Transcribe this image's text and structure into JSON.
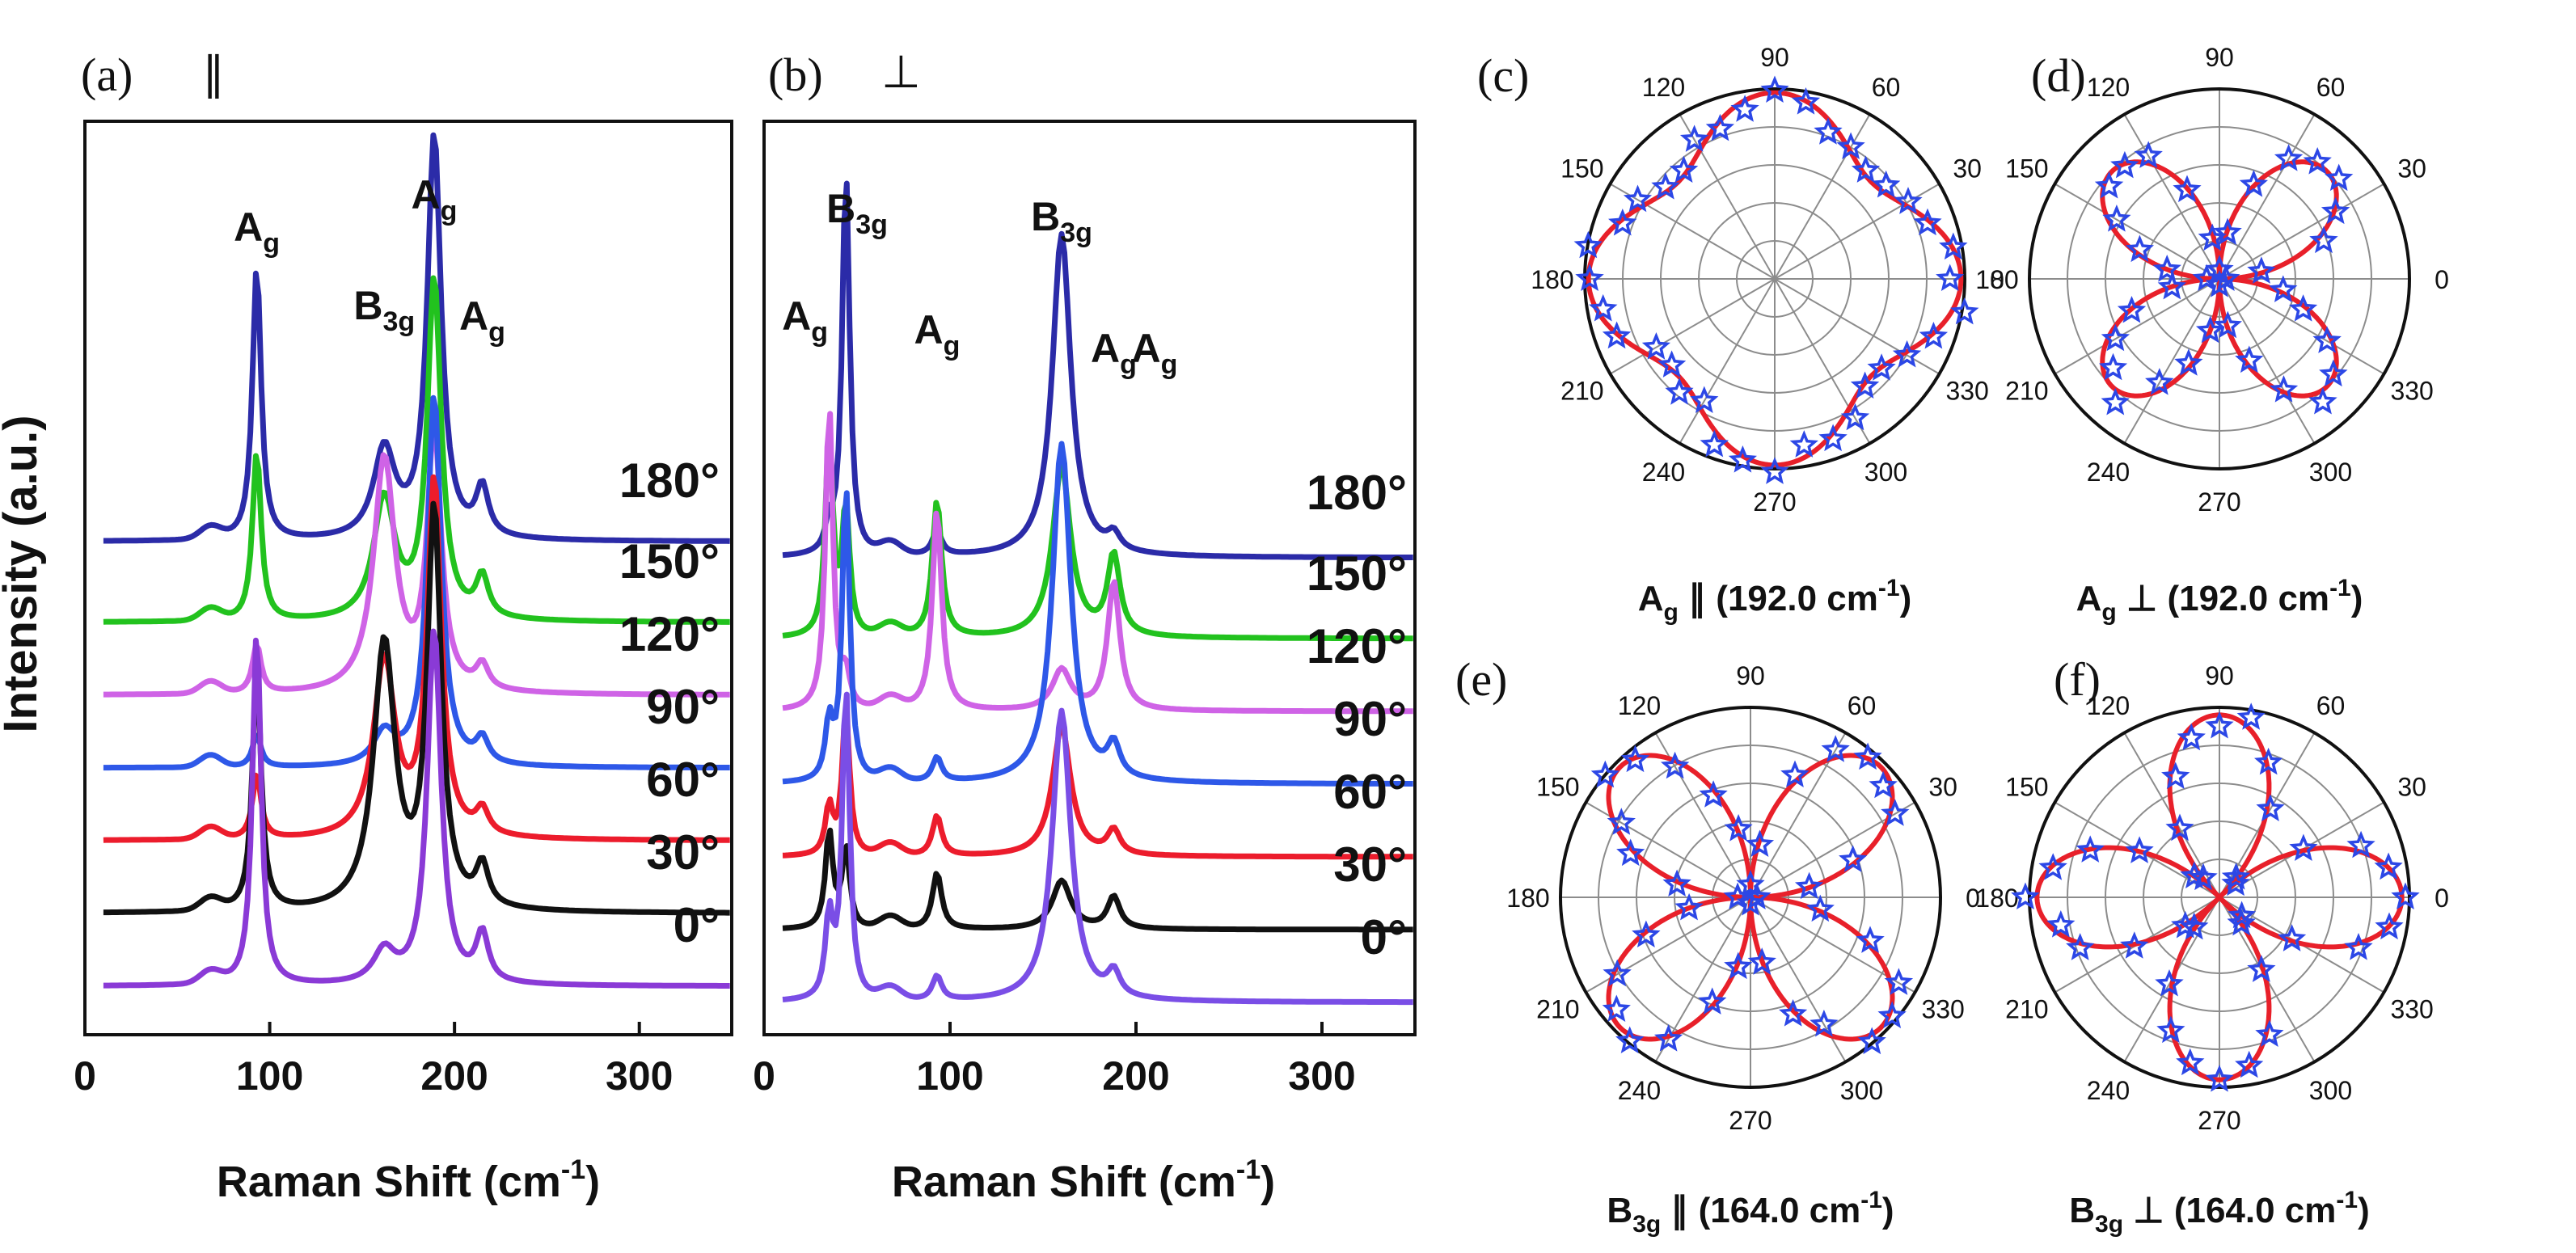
{
  "chart_data": [
    {
      "type": "line",
      "panel": "(a)",
      "polarization": "∥",
      "xlabel": "Raman Shift (cm-1)",
      "xlabel_main": "Raman Shift (cm",
      "xlabel_sup": "-1",
      "xlabel_end": ")",
      "ylabel": "Intensity (a.u.)",
      "xlim": [
        0,
        350
      ],
      "xticks": [
        "0",
        "100",
        "200",
        "300"
      ],
      "xtick_values": [
        0,
        100,
        200,
        300
      ],
      "peaks_cm": [
        93,
        162,
        189,
        215
      ],
      "peak_labels": [
        {
          "main": "A",
          "sub": "g",
          "x_cm": 93
        },
        {
          "main": "B",
          "sub": "3g",
          "x_cm": 162
        },
        {
          "main": "A",
          "sub": "g",
          "x_cm": 189
        },
        {
          "main": "A",
          "sub": "g",
          "x_cm": 215
        }
      ],
      "series": [
        {
          "name": "180°",
          "color": "#2b2ba8",
          "baseline": 0.8,
          "offset": 5.3,
          "peaks": [
            3.4,
            1.1,
            5.0,
            0.6
          ]
        },
        {
          "name": "150°",
          "color": "#22c21e",
          "baseline": 0.8,
          "offset": 4.3,
          "peaks": [
            2.1,
            1.5,
            4.2,
            0.5
          ]
        },
        {
          "name": "120°",
          "color": "#cf63e6",
          "baseline": 0.8,
          "offset": 3.4,
          "peaks": [
            0.6,
            2.9,
            3.2,
            0.3
          ]
        },
        {
          "name": "90°",
          "color": "#2e58e8",
          "baseline": 0.8,
          "offset": 2.5,
          "peaks": [
            0.4,
            0.4,
            4.6,
            0.3
          ]
        },
        {
          "name": "60°",
          "color": "#ec1c2c",
          "baseline": 0.8,
          "offset": 1.6,
          "peaks": [
            0.8,
            2.2,
            4.4,
            0.3
          ]
        },
        {
          "name": "30°",
          "color": "#111111",
          "baseline": 0.8,
          "offset": 0.7,
          "peaks": [
            3.0,
            3.3,
            4.9,
            0.5
          ]
        },
        {
          "name": "0°",
          "color": "#8a3ad6",
          "baseline": 0.8,
          "offset": -0.2,
          "peaks": [
            4.4,
            0.4,
            4.4,
            0.6
          ]
        }
      ]
    },
    {
      "type": "line",
      "panel": "(b)",
      "polarization": "⊥",
      "xlabel": "Raman Shift (cm-1)",
      "xlabel_main": "Raman Shift (cm",
      "xlabel_sup": "-1",
      "xlabel_end": ")",
      "xlim": [
        0,
        350
      ],
      "xticks": [
        "0",
        "100",
        "200",
        "300"
      ],
      "xtick_values": [
        0,
        100,
        200,
        300
      ],
      "peaks_cm": [
        35,
        44,
        93,
        160,
        188
      ],
      "peak_labels": [
        {
          "main": "A",
          "sub": "g",
          "x_cm": 22
        },
        {
          "main": "B",
          "sub": "3g",
          "x_cm": 50
        },
        {
          "main": "A",
          "sub": "g",
          "x_cm": 93
        },
        {
          "main": "B",
          "sub": "3g",
          "x_cm": 160
        },
        {
          "main": "A",
          "sub": "g",
          "x_cm": 188
        },
        {
          "main": "A",
          "sub": "g",
          "x_cm": 210
        }
      ],
      "series": [
        {
          "name": "180°",
          "color": "#2b2ba8",
          "offset": 5.3,
          "peaks": [
            0.3,
            4.8,
            0.3,
            4.0,
            0.2
          ]
        },
        {
          "name": "150°",
          "color": "#22c21e",
          "offset": 4.3,
          "peaks": [
            2.5,
            1.6,
            1.7,
            2.1,
            1.0
          ]
        },
        {
          "name": "120°",
          "color": "#cf63e6",
          "offset": 3.4,
          "peaks": [
            3.8,
            0.4,
            2.5,
            0.5,
            1.6
          ]
        },
        {
          "name": "90°",
          "color": "#2e58e8",
          "offset": 2.5,
          "peaks": [
            0.7,
            3.7,
            0.3,
            4.2,
            0.4
          ]
        },
        {
          "name": "60°",
          "color": "#ec1c2c",
          "offset": 1.6,
          "peaks": [
            0.6,
            1.8,
            0.5,
            1.6,
            0.3
          ]
        },
        {
          "name": "30°",
          "color": "#111111",
          "offset": 0.7,
          "peaks": [
            1.2,
            1.0,
            0.7,
            0.6,
            0.4
          ]
        },
        {
          "name": "0°",
          "color": "#7a4ee6",
          "offset": -0.2,
          "peaks": [
            1.0,
            3.9,
            0.3,
            3.6,
            0.3
          ]
        }
      ]
    },
    {
      "type": "polar",
      "panel": "(c)",
      "caption": {
        "main": "A",
        "sub": "g",
        "rest": " ∥ (192.0 cm",
        "sup": "-1",
        "end": ")"
      },
      "theta_ticks": [
        "0",
        "30",
        "60",
        "90",
        "120",
        "150",
        "180",
        "210",
        "240",
        "270",
        "300",
        "330"
      ],
      "model": {
        "form": "a + b*cos^2(2θ)",
        "a": 0.72,
        "b": 0.26
      }
    },
    {
      "type": "polar",
      "panel": "(d)",
      "caption": {
        "main": "A",
        "sub": "g",
        "rest": " ⊥ (192.0 cm",
        "sup": "-1",
        "end": ")"
      },
      "theta_ticks": [
        "0",
        "30",
        "60",
        "90",
        "120",
        "150",
        "180",
        "210",
        "240",
        "270",
        "300",
        "330"
      ],
      "model": {
        "form": "b*|sin(2θ)|",
        "a": 0.0,
        "b": 0.8
      }
    },
    {
      "type": "polar",
      "panel": "(e)",
      "caption": {
        "main": "B",
        "sub": "3g",
        "rest": " ∥ (164.0 cm",
        "sup": "-1",
        "end": ")"
      },
      "theta_ticks": [
        "0",
        "30",
        "60",
        "90",
        "120",
        "150",
        "180",
        "210",
        "240",
        "270",
        "300",
        "330"
      ],
      "model": {
        "form": "b*|sin(2θ)|",
        "a": 0.0,
        "b": 0.97
      }
    },
    {
      "type": "polar",
      "panel": "(f)",
      "caption": {
        "main": "B",
        "sub": "3g",
        "rest": " ⊥ (164.0 cm",
        "sup": "-1",
        "end": ")"
      },
      "theta_ticks": [
        "0",
        "30",
        "60",
        "90",
        "120",
        "150",
        "180",
        "210",
        "240",
        "270",
        "300",
        "330"
      ],
      "model": {
        "form": "b*|cos(2θ)|",
        "a": 0.0,
        "b": 0.96
      }
    }
  ],
  "colors": {
    "fit_line": "#e8202a",
    "data_star": "#2c47e6",
    "grid": "#8c8c8c"
  }
}
